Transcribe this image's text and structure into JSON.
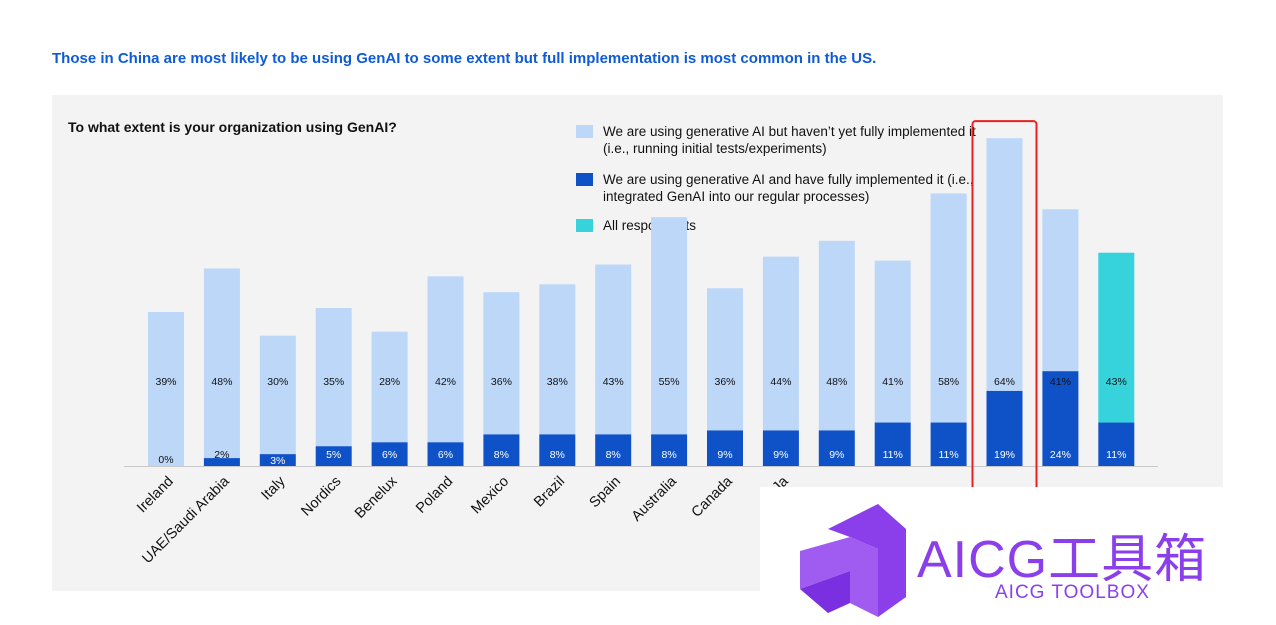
{
  "headline": "Those in China are most likely to be using GenAI to some extent but full implementation is most common in the US.",
  "chart_data": {
    "type": "bar",
    "stacked": true,
    "title": "To what extent is your organization using GenAI?",
    "categories": [
      "Ireland",
      "UAE/Saudi Arabia",
      "Italy",
      "Nordics",
      "Benelux",
      "Poland",
      "Mexico",
      "Brazil",
      "Spain",
      "Australia",
      "Canada",
      "Ja",
      "",
      "",
      "",
      "",
      "",
      ""
    ],
    "series": [
      {
        "name": "We are using generative AI and have fully implemented it (i.e., integrated GenAI into our regular processes)",
        "color": "#0f52c7",
        "values": [
          0,
          2,
          3,
          5,
          6,
          6,
          8,
          8,
          8,
          8,
          9,
          9,
          9,
          11,
          11,
          19,
          24,
          11
        ]
      },
      {
        "name": "We are using generative AI but haven’t yet fully implemented it (i.e., running initial tests/experiments)",
        "color": "#bcd7f8",
        "values": [
          39,
          48,
          30,
          35,
          28,
          42,
          36,
          38,
          43,
          55,
          36,
          44,
          48,
          41,
          58,
          64,
          41,
          43
        ]
      }
    ],
    "labels_bottom": [
      "0%",
      "2%",
      "3%",
      "5%",
      "6%",
      "6%",
      "8%",
      "8%",
      "8%",
      "8%",
      "9%",
      "9%",
      "9%",
      "11%",
      "11%",
      "19%",
      "24%",
      "11%"
    ],
    "labels_top": [
      "39%",
      "48%",
      "30%",
      "35%",
      "28%",
      "42%",
      "36%",
      "38%",
      "43%",
      "55%",
      "36%",
      "44%",
      "48%",
      "41%",
      "58%",
      "64%",
      "41%",
      "43%"
    ],
    "all_respondents": {
      "name": "All respondents",
      "color": "#36d3dd",
      "index": 17
    },
    "highlight_index": 15,
    "highlight_color": "#e8201f",
    "ylim": [
      0,
      85
    ],
    "grid": false
  },
  "watermark": {
    "title": "AICG工具箱",
    "subtitle": "AICG TOOLBOX",
    "color": "#8b3fea"
  }
}
